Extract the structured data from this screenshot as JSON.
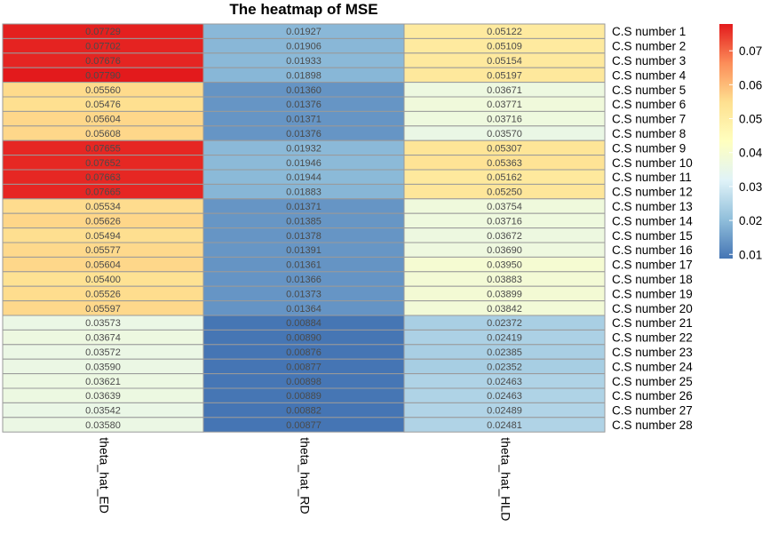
{
  "chart_data": {
    "type": "heatmap",
    "title": "The heatmap of MSE",
    "columns": [
      "theta_hat_ED",
      "theta_hat_RD",
      "theta_hat_HLD"
    ],
    "rows": [
      "C.S number  1",
      "C.S number  2",
      "C.S number  3",
      "C.S number  4",
      "C.S number  5",
      "C.S number  6",
      "C.S number  7",
      "C.S number  8",
      "C.S number  9",
      "C.S number  10",
      "C.S number  11",
      "C.S number  12",
      "C.S number  13",
      "C.S number  14",
      "C.S number  15",
      "C.S number  16",
      "C.S number  17",
      "C.S number  18",
      "C.S number  19",
      "C.S number  20",
      "C.S number  21",
      "C.S number  22",
      "C.S number  23",
      "C.S number  24",
      "C.S number  25",
      "C.S number  26",
      "C.S number  27",
      "C.S number  28"
    ],
    "values": [
      [
        0.07729,
        0.01927,
        0.05122
      ],
      [
        0.07702,
        0.01906,
        0.05109
      ],
      [
        0.07676,
        0.01933,
        0.05154
      ],
      [
        0.0779,
        0.01898,
        0.05197
      ],
      [
        0.0556,
        0.0136,
        0.03671
      ],
      [
        0.05476,
        0.01376,
        0.03771
      ],
      [
        0.05604,
        0.01371,
        0.03716
      ],
      [
        0.05608,
        0.01376,
        0.0357
      ],
      [
        0.07655,
        0.01932,
        0.05307
      ],
      [
        0.07652,
        0.01946,
        0.05363
      ],
      [
        0.07663,
        0.01944,
        0.05162
      ],
      [
        0.07665,
        0.01883,
        0.0525
      ],
      [
        0.05534,
        0.01371,
        0.03754
      ],
      [
        0.05626,
        0.01385,
        0.03716
      ],
      [
        0.05494,
        0.01378,
        0.03672
      ],
      [
        0.05577,
        0.01391,
        0.0369
      ],
      [
        0.05604,
        0.01361,
        0.0395
      ],
      [
        0.054,
        0.01366,
        0.03883
      ],
      [
        0.05526,
        0.01373,
        0.03899
      ],
      [
        0.05597,
        0.01364,
        0.03842
      ],
      [
        0.03573,
        0.00884,
        0.02372
      ],
      [
        0.03674,
        0.0089,
        0.02419
      ],
      [
        0.03572,
        0.00876,
        0.02385
      ],
      [
        0.0359,
        0.00877,
        0.02352
      ],
      [
        0.03621,
        0.00898,
        0.02463
      ],
      [
        0.03639,
        0.00889,
        0.02463
      ],
      [
        0.03542,
        0.00882,
        0.02489
      ],
      [
        0.0358,
        0.00877,
        0.02481
      ]
    ],
    "colorbar": {
      "ticks": [
        0.01,
        0.02,
        0.03,
        0.04,
        0.05,
        0.06,
        0.07
      ],
      "tick_labels": [
        "0.01",
        "0.02",
        "0.03",
        "0.04",
        "0.05",
        "0.06",
        "0.07"
      ],
      "range": [
        0.00876,
        0.0779
      ],
      "colors": [
        "#4575B4",
        "#91BFDB",
        "#E0F3F8",
        "#FFFFBF",
        "#FEE090",
        "#FC8D59",
        "#E31A1C"
      ]
    },
    "legend_position": "right",
    "grid": false
  }
}
